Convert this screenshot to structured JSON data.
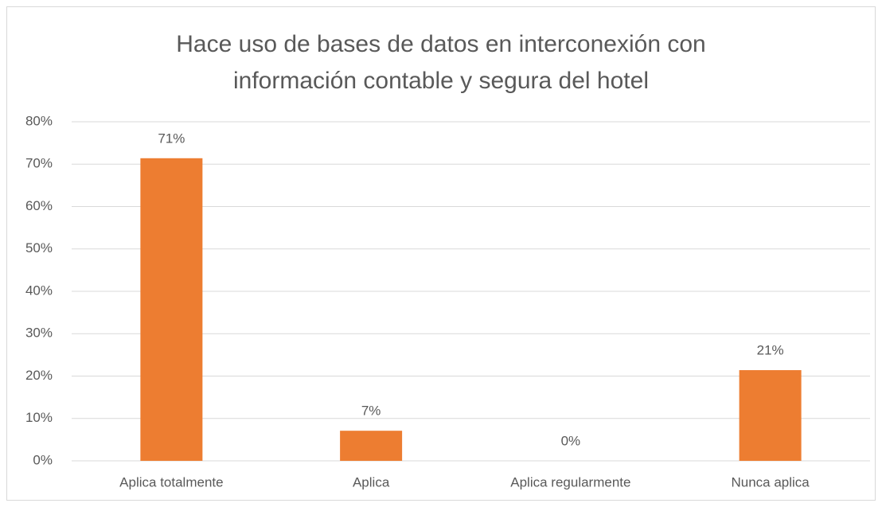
{
  "chart_data": {
    "type": "bar",
    "title": [
      "Hace uso de bases de datos en interconexión con",
      "información contable y segura del hotel"
    ],
    "categories": [
      "Aplica totalmente",
      "Aplica",
      "Aplica regularmente",
      "Nunca aplica"
    ],
    "values": [
      71.4,
      7.1,
      0,
      21.4
    ],
    "value_labels": [
      "71%",
      "7%",
      "0%",
      "21%"
    ],
    "color": "#ed7d31",
    "ylim": [
      0,
      80
    ],
    "yticks": [
      {
        "value": 0,
        "label": "0%"
      },
      {
        "value": 10,
        "label": "10%"
      },
      {
        "value": 20,
        "label": "20%"
      },
      {
        "value": 30,
        "label": "30%"
      },
      {
        "value": 40,
        "label": "40%"
      },
      {
        "value": 50,
        "label": "50%"
      },
      {
        "value": 60,
        "label": "60%"
      },
      {
        "value": 70,
        "label": "70%"
      },
      {
        "value": 80,
        "label": "80%"
      }
    ],
    "grid": true
  }
}
